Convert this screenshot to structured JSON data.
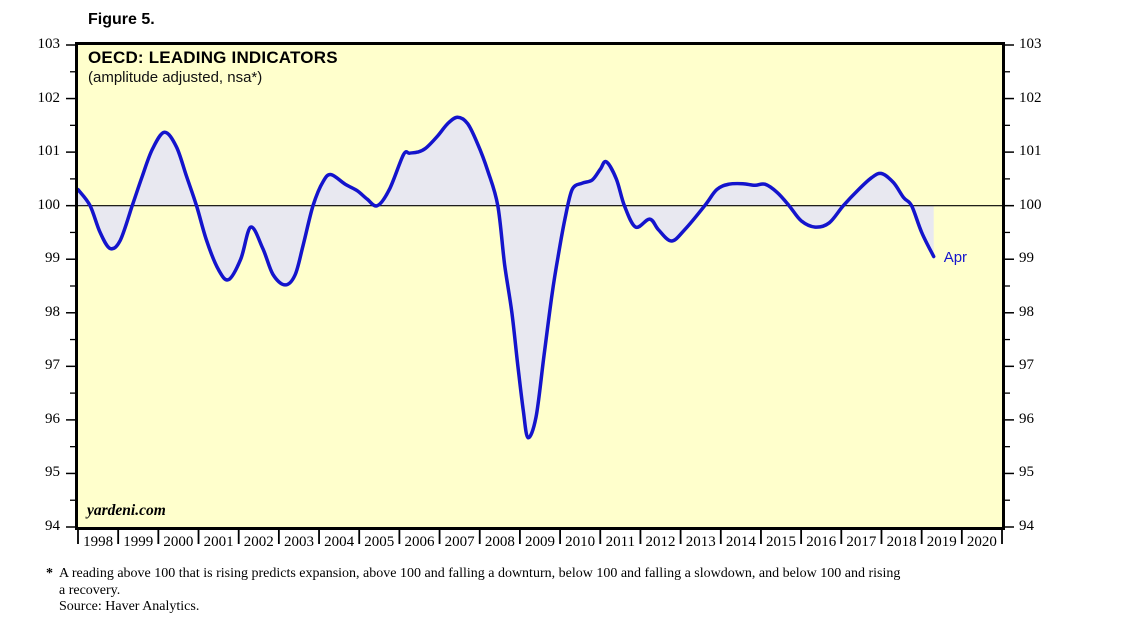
{
  "figure_label": "Figure 5.",
  "watermark": "yardeni.com",
  "footnote": {
    "marker": "*",
    "line1": "A reading above 100 that is rising predicts expansion, above 100 and falling a downturn, below 100 and falling a slowdown, and below 100 and rising",
    "line2": "a recovery.",
    "source": "Source: Haver Analytics."
  },
  "chart_data": {
    "type": "line",
    "title": "OECD: LEADING INDICATORS",
    "subtitle": "(amplitude adjusted, nsa*)",
    "end_label": "Apr",
    "x_range": [
      1998,
      2021
    ],
    "y_range": [
      94,
      103
    ],
    "baseline": 100,
    "grid": false,
    "legend_position": "none",
    "y_ticks": [
      94,
      95,
      96,
      97,
      98,
      99,
      100,
      101,
      102,
      103
    ],
    "y_minor_ticks": [
      94.5,
      95.5,
      96.5,
      97.5,
      98.5,
      99.5,
      100.5,
      101.5,
      102.5
    ],
    "x_tick_years": [
      1998,
      1999,
      2000,
      2001,
      2002,
      2003,
      2004,
      2005,
      2006,
      2007,
      2008,
      2009,
      2010,
      2011,
      2012,
      2013,
      2014,
      2015,
      2016,
      2017,
      2018,
      2019,
      2020
    ],
    "colors": {
      "line": "#1414CC",
      "fill": "#E8E8F0",
      "plot_bg": "#FFFFCC",
      "baseline": "#000000",
      "axis": "#000000"
    },
    "series": [
      {
        "name": "OECD: LEADING INDICATORS (amplitude adjusted, nsa)",
        "last_point": {
          "label": "Apr",
          "value": 99.05
        },
        "points": [
          [
            1998.0,
            100.3
          ],
          [
            1998.3,
            100.0
          ],
          [
            1998.55,
            99.5
          ],
          [
            1998.8,
            99.2
          ],
          [
            1999.05,
            99.35
          ],
          [
            1999.35,
            100.0
          ],
          [
            1999.6,
            100.55
          ],
          [
            1999.85,
            101.05
          ],
          [
            2000.15,
            101.37
          ],
          [
            2000.45,
            101.1
          ],
          [
            2000.7,
            100.55
          ],
          [
            2000.95,
            100.0
          ],
          [
            2001.2,
            99.35
          ],
          [
            2001.5,
            98.8
          ],
          [
            2001.75,
            98.62
          ],
          [
            2002.05,
            99.0
          ],
          [
            2002.3,
            99.6
          ],
          [
            2002.6,
            99.2
          ],
          [
            2002.85,
            98.72
          ],
          [
            2003.15,
            98.52
          ],
          [
            2003.4,
            98.7
          ],
          [
            2003.6,
            99.25
          ],
          [
            2003.85,
            100.0
          ],
          [
            2004.1,
            100.45
          ],
          [
            2004.3,
            100.58
          ],
          [
            2004.65,
            100.4
          ],
          [
            2004.95,
            100.28
          ],
          [
            2005.2,
            100.12
          ],
          [
            2005.45,
            100.0
          ],
          [
            2005.75,
            100.3
          ],
          [
            2006.1,
            100.95
          ],
          [
            2006.25,
            100.98
          ],
          [
            2006.45,
            101.0
          ],
          [
            2006.65,
            101.07
          ],
          [
            2006.95,
            101.3
          ],
          [
            2007.2,
            101.53
          ],
          [
            2007.45,
            101.65
          ],
          [
            2007.7,
            101.53
          ],
          [
            2007.95,
            101.15
          ],
          [
            2008.2,
            100.65
          ],
          [
            2008.45,
            100.0
          ],
          [
            2008.62,
            98.9
          ],
          [
            2008.8,
            98.0
          ],
          [
            2008.95,
            97.0
          ],
          [
            2009.08,
            96.2
          ],
          [
            2009.2,
            95.67
          ],
          [
            2009.4,
            96.05
          ],
          [
            2009.6,
            97.2
          ],
          [
            2009.8,
            98.35
          ],
          [
            2009.95,
            99.05
          ],
          [
            2010.12,
            99.75
          ],
          [
            2010.3,
            100.3
          ],
          [
            2010.55,
            100.42
          ],
          [
            2010.8,
            100.48
          ],
          [
            2011.0,
            100.68
          ],
          [
            2011.15,
            100.82
          ],
          [
            2011.4,
            100.5
          ],
          [
            2011.6,
            100.0
          ],
          [
            2011.88,
            99.6
          ],
          [
            2012.23,
            99.75
          ],
          [
            2012.45,
            99.55
          ],
          [
            2012.77,
            99.34
          ],
          [
            2013.1,
            99.55
          ],
          [
            2013.6,
            100.0
          ],
          [
            2013.9,
            100.3
          ],
          [
            2014.2,
            100.4
          ],
          [
            2014.55,
            100.41
          ],
          [
            2014.85,
            100.38
          ],
          [
            2015.1,
            100.4
          ],
          [
            2015.4,
            100.25
          ],
          [
            2015.7,
            100.0
          ],
          [
            2016.0,
            99.72
          ],
          [
            2016.35,
            99.6
          ],
          [
            2016.7,
            99.68
          ],
          [
            2017.05,
            100.0
          ],
          [
            2017.4,
            100.28
          ],
          [
            2017.75,
            100.52
          ],
          [
            2018.0,
            100.6
          ],
          [
            2018.3,
            100.43
          ],
          [
            2018.55,
            100.15
          ],
          [
            2018.75,
            100.0
          ],
          [
            2019.0,
            99.5
          ],
          [
            2019.3,
            99.05
          ]
        ]
      }
    ]
  }
}
